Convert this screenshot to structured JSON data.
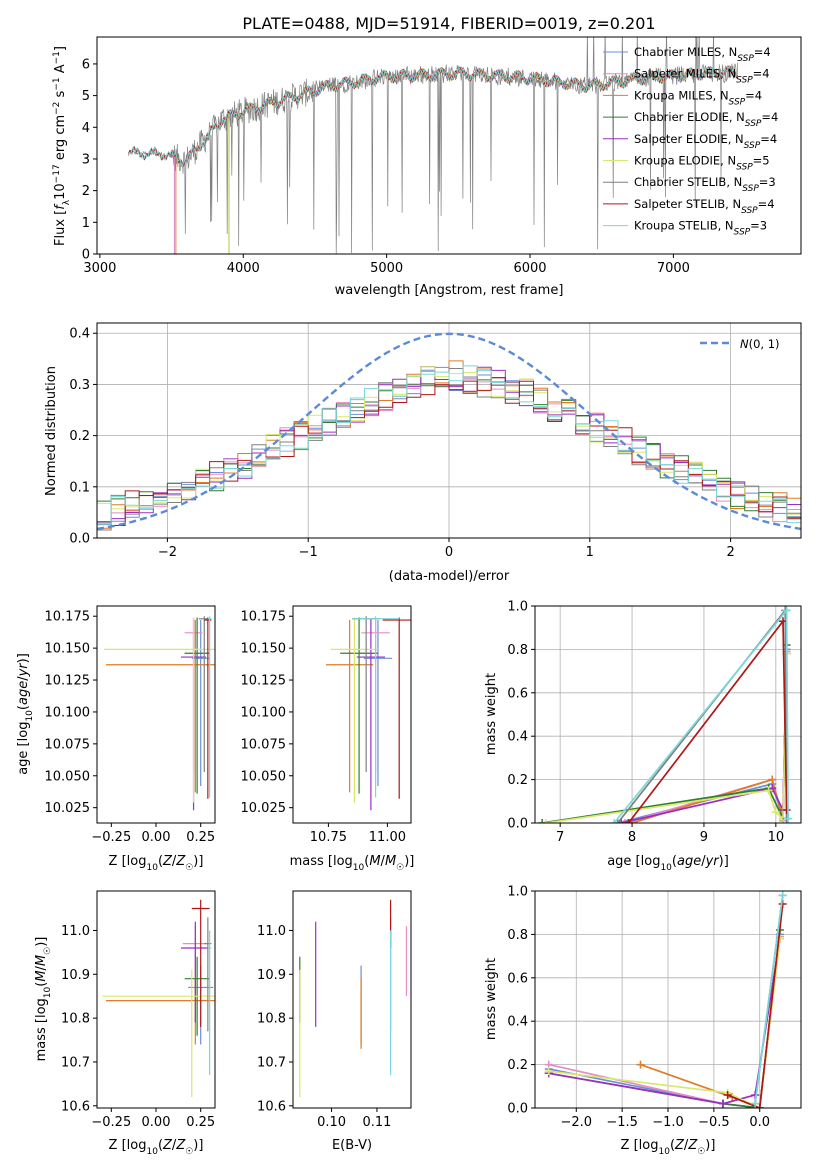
{
  "title": "PLATE=0488, MJD=51914, FIBERID=0019, z=0.201",
  "legend_labels": [
    "Chabrier MILES, N_SSP=4",
    "Salpeter MILES, N_SSP=4",
    "Kroupa MILES, N_SSP=4",
    "Chabrier ELODIE, N_SSP=4",
    "Salpeter ELODIE, N_SSP=4",
    "Kroupa ELODIE, N_SSP=5",
    "Chabrier STELIB, N_SSP=3",
    "Salpeter STELIB, N_SSP=4",
    "Kroupa STELIB, N_SSP=3"
  ],
  "colors": [
    "#6a8fd8",
    "#e88ac6",
    "#e07b2a",
    "#2f7f2f",
    "#9a2fc4",
    "#d8e86a",
    "#808080",
    "#b01818",
    "#7ad8d8"
  ],
  "chart_data": [
    {
      "id": "spectrum",
      "type": "line",
      "title": "PLATE=0488, MJD=51914, FIBERID=0019, z=0.201",
      "xlabel": "wavelength [Angstrom, rest frame]",
      "ylabel": "Flux [f_λ 10^-17 erg cm^-2 s^-1 A^-1]",
      "xlim": [
        2980,
        7890
      ],
      "ylim": [
        0,
        6.85
      ],
      "xticks": [
        3000,
        4000,
        5000,
        6000,
        7000
      ],
      "yticks": [
        0,
        1,
        2,
        3,
        4,
        5,
        6
      ],
      "grid": false,
      "legend": "right",
      "continuum": {
        "x": [
          3200,
          3450,
          3600,
          3750,
          3850,
          4000,
          4300,
          4600,
          5000,
          5500,
          6000,
          6400,
          6800,
          7200,
          7450
        ],
        "y": [
          3.2,
          3.15,
          2.95,
          3.7,
          4.25,
          4.5,
          4.9,
          5.3,
          5.6,
          5.7,
          5.55,
          5.3,
          5.55,
          5.7,
          5.75
        ]
      },
      "series": [
        {
          "name": "Chabrier MILES, N_SSP=4",
          "model_start": 3520
        },
        {
          "name": "Salpeter MILES, N_SSP=4",
          "model_start": 3520
        },
        {
          "name": "Kroupa MILES, N_SSP=4",
          "model_start": 3530
        },
        {
          "name": "Chabrier ELODIE, N_SSP=4",
          "model_start": 3900
        },
        {
          "name": "Salpeter ELODIE, N_SSP=4",
          "model_start": 3900
        },
        {
          "name": "Kroupa ELODIE, N_SSP=5",
          "model_start": 3900
        },
        {
          "name": "Chabrier STELIB, N_SSP=3",
          "model_start": 3200
        },
        {
          "name": "Salpeter STELIB, N_SSP=4",
          "model_start": 3200
        },
        {
          "name": "Kroupa STELIB, N_SSP=3",
          "model_start": 3200
        }
      ]
    },
    {
      "id": "residuals",
      "type": "line",
      "xlabel": "(data-model)/error",
      "ylabel": "Normed distribution",
      "xlim": [
        -2.5,
        2.5
      ],
      "ylim": [
        0,
        0.42
      ],
      "xticks": [
        -2,
        -1,
        0,
        1,
        2
      ],
      "yticks": [
        0.0,
        0.1,
        0.2,
        0.3,
        0.4
      ],
      "grid": true,
      "legend": "top-right",
      "reference_curve": {
        "name": "N(0,1)",
        "mean": 0,
        "sigma": 1
      },
      "bin_width": 0.1,
      "histogram_envelope": {
        "x": [
          -2.5,
          -2.0,
          -1.5,
          -1.0,
          -0.5,
          0.0,
          0.5,
          1.0,
          1.5,
          2.0,
          2.5
        ],
        "y": [
          0.04,
          0.085,
          0.135,
          0.21,
          0.27,
          0.32,
          0.29,
          0.225,
          0.15,
          0.09,
          0.045
        ]
      }
    },
    {
      "id": "age_vs_Z",
      "type": "scatter",
      "xlabel": "Z [log10(Z/Z☉)]",
      "ylabel": "age  [log10(age/yr)]",
      "xlim": [
        -0.33,
        0.33
      ],
      "ylim": [
        10.013,
        10.183
      ],
      "xticks": [
        -0.25,
        0.0,
        0.25
      ],
      "yticks": [
        10.025,
        10.05,
        10.075,
        10.1,
        10.125,
        10.15,
        10.175
      ],
      "points": [
        {
          "x": 0.25,
          "y": 10.142,
          "x_err": 0.05,
          "y_err": [
            0.1,
            0.03
          ]
        },
        {
          "x": 0.21,
          "y": 10.162,
          "x_err": 0.05,
          "y_err": [
            0.11,
            0.012
          ]
        },
        {
          "x": 0.22,
          "y": 10.137,
          "x_err": 0.5,
          "y_err": [
            0.1,
            0.035
          ]
        },
        {
          "x": 0.23,
          "y": 10.146,
          "x_err": 0.07,
          "y_err": [
            0.11,
            0.028
          ]
        },
        {
          "x": 0.21,
          "y": 10.143,
          "x_err": 0.07,
          "y_err": [
            0.12,
            0.03
          ]
        },
        {
          "x": 0.21,
          "y": 10.149,
          "x_err": 0.5,
          "y_err": [
            0.12,
            0.025
          ]
        },
        {
          "x": 0.27,
          "y": 10.173,
          "x_err": 0.03,
          "y_err": [
            0.12,
            0.002
          ]
        },
        {
          "x": 0.29,
          "y": 10.172,
          "x_err": 0.02,
          "y_err": [
            0.14,
            0.002
          ]
        },
        {
          "x": 0.3,
          "y": 10.173,
          "x_err": 0.01,
          "y_err": [
            0.14,
            0.002
          ]
        }
      ]
    },
    {
      "id": "age_vs_mass",
      "type": "scatter",
      "xlabel": "mass [log10(M/M☉)]",
      "xlim": [
        10.6,
        11.1
      ],
      "ylim": [
        10.013,
        10.183
      ],
      "xticks": [
        10.75,
        11.0
      ],
      "xticklabels": [
        "10.75",
        "11.00"
      ],
      "yticks": [
        10.025,
        10.05,
        10.075,
        10.1,
        10.125,
        10.15,
        10.175
      ],
      "points": [
        {
          "x": 10.96,
          "y": 10.142,
          "x_err": 0.06,
          "y_err": [
            0.1,
            0.03
          ]
        },
        {
          "x": 10.95,
          "y": 10.162,
          "x_err": 0.06,
          "y_err": [
            0.11,
            0.012
          ]
        },
        {
          "x": 10.84,
          "y": 10.137,
          "x_err": 0.1,
          "y_err": [
            0.1,
            0.035
          ]
        },
        {
          "x": 10.88,
          "y": 10.146,
          "x_err": 0.08,
          "y_err": [
            0.11,
            0.028
          ]
        },
        {
          "x": 10.93,
          "y": 10.143,
          "x_err": 0.06,
          "y_err": [
            0.12,
            0.03
          ]
        },
        {
          "x": 10.86,
          "y": 10.149,
          "x_err": 0.1,
          "y_err": [
            0.12,
            0.025
          ]
        },
        {
          "x": 10.91,
          "y": 10.173,
          "x_err": 0.06,
          "y_err": [
            0.12,
            0.002
          ]
        },
        {
          "x": 11.05,
          "y": 10.172,
          "x_err": 0.07,
          "y_err": [
            0.14,
            0.002
          ]
        },
        {
          "x": 10.95,
          "y": 10.173,
          "x_err": 0.1,
          "y_err": [
            0.14,
            0.002
          ]
        }
      ]
    },
    {
      "id": "massweight_vs_age",
      "type": "line",
      "xlabel": "age  [log10(age/yr)]",
      "ylabel": "mass weight",
      "xlim": [
        6.65,
        10.35
      ],
      "ylim": [
        0,
        1.0
      ],
      "xticks": [
        7,
        8,
        9,
        10
      ],
      "yticks": [
        0.0,
        0.2,
        0.4,
        0.6,
        0.8,
        1.0
      ],
      "grid": true,
      "series": [
        {
          "name": "Chabrier MILES, N_SSP=4",
          "x": [
            7.8,
            9.95,
            10.1,
            10.15
          ],
          "y": [
            0.0,
            0.18,
            0.02,
            0.8
          ]
        },
        {
          "name": "Salpeter MILES, N_SSP=4",
          "x": [
            7.9,
            9.95,
            10.1,
            10.15
          ],
          "y": [
            0.0,
            0.2,
            0.01,
            0.79
          ]
        },
        {
          "name": "Kroupa MILES, N_SSP=4",
          "x": [
            8.0,
            9.95,
            10.1,
            10.15
          ],
          "y": [
            0.0,
            0.2,
            0.02,
            0.78
          ]
        },
        {
          "name": "Chabrier ELODIE, N_SSP=4",
          "x": [
            6.75,
            9.9,
            10.1,
            10.15
          ],
          "y": [
            0.0,
            0.16,
            0.02,
            0.82
          ]
        },
        {
          "name": "Salpeter ELODIE, N_SSP=4",
          "x": [
            7.85,
            9.95,
            10.1,
            10.15
          ],
          "y": [
            0.0,
            0.16,
            0.06,
            0.78
          ]
        },
        {
          "name": "Kroupa ELODIE, N_SSP=5",
          "x": [
            6.8,
            9.9,
            10.0,
            10.1,
            10.15
          ],
          "y": [
            0.0,
            0.15,
            0.05,
            0.02,
            0.78
          ]
        },
        {
          "name": "Chabrier STELIB, N_SSP=3",
          "x": [
            7.8,
            10.13,
            10.15
          ],
          "y": [
            0.0,
            0.98,
            0.02
          ]
        },
        {
          "name": "Salpeter STELIB, N_SSP=4",
          "x": [
            7.95,
            10.1,
            10.15
          ],
          "y": [
            0.0,
            0.93,
            0.06
          ]
        },
        {
          "name": "Kroupa STELIB, N_SSP=3",
          "x": [
            7.75,
            10.15,
            10.17
          ],
          "y": [
            0.0,
            0.98,
            0.02
          ]
        }
      ]
    },
    {
      "id": "mass_vs_Z",
      "type": "scatter",
      "xlabel": "Z [log10(Z/Z☉)]",
      "ylabel": "mass [log10(M/M☉)]",
      "xlim": [
        -0.33,
        0.33
      ],
      "ylim": [
        10.595,
        11.09
      ],
      "xticks": [
        -0.25,
        0.0,
        0.25
      ],
      "yticks": [
        10.6,
        10.7,
        10.8,
        10.9,
        11.0
      ],
      "points": [
        {
          "x": 0.25,
          "y": 10.87,
          "x_err": 0.07,
          "y_err": [
            0.13,
            0.05
          ]
        },
        {
          "x": 0.22,
          "y": 10.97,
          "x_err": 0.07,
          "y_err": [
            0.18,
            0.04
          ]
        },
        {
          "x": 0.22,
          "y": 10.84,
          "x_err": 0.5,
          "y_err": [
            0.1,
            0.05
          ]
        },
        {
          "x": 0.23,
          "y": 10.89,
          "x_err": 0.07,
          "y_err": [
            0.13,
            0.05
          ]
        },
        {
          "x": 0.22,
          "y": 10.96,
          "x_err": 0.08,
          "y_err": [
            0.17,
            0.06
          ]
        },
        {
          "x": 0.2,
          "y": 10.85,
          "x_err": 0.5,
          "y_err": [
            0.23,
            0.06
          ]
        },
        {
          "x": 0.29,
          "y": 10.97,
          "x_err": 0.02,
          "y_err": [
            0.2,
            0.06
          ]
        },
        {
          "x": 0.25,
          "y": 11.05,
          "x_err": 0.05,
          "y_err": [
            0.27,
            0.02
          ]
        },
        {
          "x": 0.3,
          "y": 10.96,
          "x_err": 0.01,
          "y_err": [
            0.29,
            0.04
          ]
        }
      ]
    },
    {
      "id": "mass_vs_ebv",
      "type": "scatter",
      "xlabel": "E(B-V)",
      "xlim": [
        0.0915,
        0.1175
      ],
      "ylim": [
        10.595,
        11.09
      ],
      "xticks": [
        0.1,
        0.11
      ],
      "xticklabels": [
        "0.10",
        "0.11"
      ],
      "yticks": [
        10.6,
        10.7,
        10.8,
        10.9,
        11.0
      ],
      "points": [
        {
          "x": 0.1065,
          "y": 10.87,
          "y_err": [
            0.13,
            0.05
          ]
        },
        {
          "x": 0.1165,
          "y": 10.97,
          "y_err": [
            0.12,
            0.04
          ]
        },
        {
          "x": 0.1065,
          "y": 10.84,
          "y_err": [
            0.11,
            0.05
          ]
        },
        {
          "x": 0.093,
          "y": 10.89,
          "y_err": [
            0.1,
            0.05
          ]
        },
        {
          "x": 0.0965,
          "y": 10.96,
          "y_err": [
            0.18,
            0.06
          ]
        },
        {
          "x": 0.093,
          "y": 10.85,
          "y_err": [
            0.23,
            0.06
          ]
        },
        {
          "x": 0.113,
          "y": 10.97,
          "y_err": [
            0.2,
            0.06
          ]
        },
        {
          "x": 0.113,
          "y": 11.05,
          "y_err": [
            0.09,
            0.02
          ]
        },
        {
          "x": 0.113,
          "y": 10.96,
          "y_err": [
            0.29,
            0.04
          ]
        }
      ]
    },
    {
      "id": "massweight_vs_Z",
      "type": "line",
      "xlabel": "Z [log10(Z/Z☉)]",
      "ylabel": "mass weight",
      "xlim": [
        -2.45,
        0.45
      ],
      "ylim": [
        0,
        1.0
      ],
      "xticks": [
        -2.0,
        -1.5,
        -1.0,
        -0.5,
        0.0
      ],
      "yticks": [
        0.0,
        0.2,
        0.4,
        0.6,
        0.8,
        1.0
      ],
      "grid": true,
      "series": [
        {
          "name": "Chabrier MILES, N_SSP=4",
          "x": [
            -2.3,
            -0.4,
            0.0,
            0.22
          ],
          "y": [
            0.18,
            0.02,
            0.0,
            0.8
          ]
        },
        {
          "name": "Salpeter MILES, N_SSP=4",
          "x": [
            -2.3,
            -0.4,
            0.0,
            0.22
          ],
          "y": [
            0.2,
            0.02,
            0.0,
            0.79
          ]
        },
        {
          "name": "Kroupa MILES, N_SSP=4",
          "x": [
            -1.3,
            -0.3,
            0.0,
            0.22
          ],
          "y": [
            0.2,
            0.05,
            0.0,
            0.78
          ]
        },
        {
          "name": "Chabrier ELODIE, N_SSP=4",
          "x": [
            -2.3,
            -0.4,
            0.0,
            0.22
          ],
          "y": [
            0.16,
            0.02,
            0.0,
            0.82
          ]
        },
        {
          "name": "Salpeter ELODIE, N_SSP=4",
          "x": [
            -2.3,
            -0.4,
            -0.05,
            0.22
          ],
          "y": [
            0.16,
            0.02,
            0.06,
            0.78
          ]
        },
        {
          "name": "Kroupa ELODIE, N_SSP=5",
          "x": [
            -2.3,
            -0.35,
            0.0,
            0.22
          ],
          "y": [
            0.17,
            0.07,
            0.0,
            0.78
          ]
        },
        {
          "name": "Chabrier STELIB, N_SSP=3",
          "x": [
            -0.05,
            0.25
          ],
          "y": [
            0.02,
            0.98
          ]
        },
        {
          "name": "Salpeter STELIB, N_SSP=4",
          "x": [
            -0.35,
            0.0,
            0.25
          ],
          "y": [
            0.06,
            0.0,
            0.94
          ]
        },
        {
          "name": "Kroupa STELIB, N_SSP=3",
          "x": [
            -0.05,
            0.25
          ],
          "y": [
            0.02,
            0.98
          ]
        }
      ]
    }
  ]
}
